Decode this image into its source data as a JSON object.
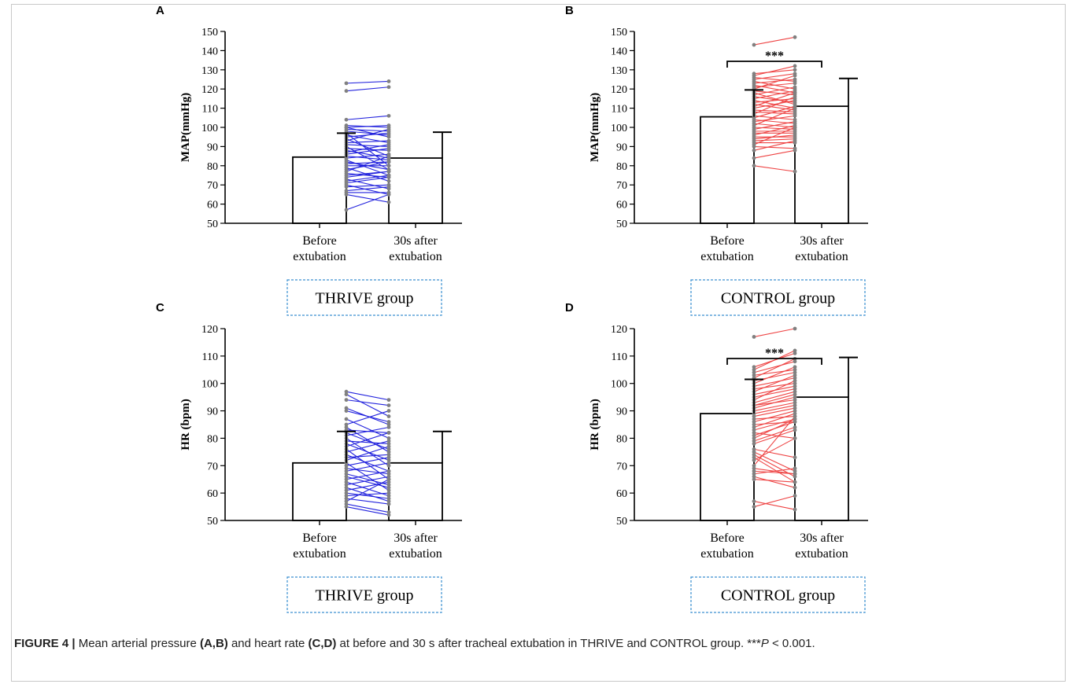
{
  "caption": {
    "label": "FIGURE 4 |",
    "t1": " Mean arterial pressure ",
    "r1": "(A,B)",
    "t2": " and heart rate ",
    "r2": "(C,D)",
    "t3": " at before and 30 s after tracheal extubation in THRIVE and CONTROL group. ***",
    "p": "P",
    "t4": " < 0.001."
  },
  "colors": {
    "thrive": "#2222dd",
    "control": "#ee4444",
    "points": "#808080",
    "group_box_border": "#3a8fd0"
  },
  "chart_data": [
    {
      "panel": "A",
      "type": "bar",
      "group": "THRIVE group",
      "ylabel": "MAP(mmHg)",
      "ylim": [
        50,
        150
      ],
      "yticks": [
        50,
        60,
        70,
        80,
        90,
        100,
        110,
        120,
        130,
        140,
        150
      ],
      "categories": [
        "Before\nextubation",
        "30s after\nextubation"
      ],
      "means": [
        84.5,
        84
      ],
      "sd_upper": [
        97,
        97.5
      ],
      "significance": "",
      "pairs": [
        [
          123,
          124
        ],
        [
          119,
          121
        ],
        [
          104,
          106
        ],
        [
          101,
          100
        ],
        [
          100,
          101
        ],
        [
          100,
          95
        ],
        [
          99,
          98
        ],
        [
          98,
          96
        ],
        [
          97,
          80
        ],
        [
          96,
          92
        ],
        [
          95,
          97
        ],
        [
          94,
          85
        ],
        [
          93,
          99
        ],
        [
          92,
          93
        ],
        [
          91,
          90
        ],
        [
          90,
          78
        ],
        [
          89,
          88
        ],
        [
          88,
          84
        ],
        [
          87,
          91
        ],
        [
          86,
          89
        ],
        [
          85,
          83
        ],
        [
          84,
          86
        ],
        [
          83,
          75
        ],
        [
          82,
          78
        ],
        [
          81,
          82
        ],
        [
          80,
          80
        ],
        [
          79,
          72
        ],
        [
          78,
          82
        ],
        [
          77,
          85
        ],
        [
          76,
          74
        ],
        [
          75,
          77
        ],
        [
          74,
          77
        ],
        [
          73,
          68
        ],
        [
          72,
          75
        ],
        [
          71,
          74
        ],
        [
          70,
          65
        ],
        [
          69,
          70
        ],
        [
          67,
          69
        ],
        [
          66,
          66
        ],
        [
          65,
          61
        ],
        [
          57,
          65
        ]
      ]
    },
    {
      "panel": "B",
      "type": "bar",
      "group": "CONTROL group",
      "ylabel": "MAP(mmHg)",
      "ylim": [
        50,
        150
      ],
      "yticks": [
        50,
        60,
        70,
        80,
        90,
        100,
        110,
        120,
        130,
        140,
        150
      ],
      "categories": [
        "Before\nextubation",
        "30s after\nextubation"
      ],
      "means": [
        105.5,
        111
      ],
      "sd_upper": [
        119.5,
        125.5
      ],
      "significance": "***",
      "pairs": [
        [
          143,
          147
        ],
        [
          128,
          130
        ],
        [
          127,
          132
        ],
        [
          126,
          124
        ],
        [
          125,
          128
        ],
        [
          124,
          120
        ],
        [
          123,
          125
        ],
        [
          122,
          118
        ],
        [
          121,
          123
        ],
        [
          120,
          127
        ],
        [
          119,
          117
        ],
        [
          118,
          112
        ],
        [
          117,
          121
        ],
        [
          116,
          113
        ],
        [
          115,
          119
        ],
        [
          114,
          110
        ],
        [
          113,
          115
        ],
        [
          112,
          109
        ],
        [
          111,
          118
        ],
        [
          110,
          114
        ],
        [
          109,
          108
        ],
        [
          108,
          107
        ],
        [
          107,
          116
        ],
        [
          106,
          104
        ],
        [
          105,
          111
        ],
        [
          104,
          102
        ],
        [
          103,
          106
        ],
        [
          102,
          100
        ],
        [
          101,
          110
        ],
        [
          100,
          99
        ],
        [
          99,
          103
        ],
        [
          98,
          98
        ],
        [
          97,
          97
        ],
        [
          96,
          101
        ],
        [
          95,
          95
        ],
        [
          94,
          96
        ],
        [
          93,
          94
        ],
        [
          92,
          92
        ],
        [
          91,
          100
        ],
        [
          90,
          89
        ],
        [
          88,
          93
        ],
        [
          84,
          88
        ],
        [
          80,
          77
        ]
      ]
    },
    {
      "panel": "C",
      "type": "bar",
      "group": "THRIVE group",
      "ylabel": "HR (bpm)",
      "ylim": [
        50,
        120
      ],
      "yticks": [
        50,
        60,
        70,
        80,
        90,
        100,
        110,
        120
      ],
      "categories": [
        "Before\nextubation",
        "30s after\nextubation"
      ],
      "means": [
        71,
        71
      ],
      "sd_upper": [
        82.5,
        82.5
      ],
      "significance": "",
      "pairs": [
        [
          97,
          94
        ],
        [
          96,
          88
        ],
        [
          94,
          92
        ],
        [
          91,
          85
        ],
        [
          90,
          86
        ],
        [
          87,
          80
        ],
        [
          85,
          90
        ],
        [
          84,
          75
        ],
        [
          83,
          82
        ],
        [
          82,
          76
        ],
        [
          81,
          84
        ],
        [
          80,
          70
        ],
        [
          79,
          78
        ],
        [
          78,
          72
        ],
        [
          77,
          82
        ],
        [
          76,
          65
        ],
        [
          75,
          79
        ],
        [
          74,
          68
        ],
        [
          73,
          74
        ],
        [
          72,
          77
        ],
        [
          71,
          61
        ],
        [
          70,
          73
        ],
        [
          69,
          67
        ],
        [
          68,
          71
        ],
        [
          67,
          63
        ],
        [
          66,
          62
        ],
        [
          65,
          68
        ],
        [
          64,
          59
        ],
        [
          63,
          66
        ],
        [
          62,
          57
        ],
        [
          61,
          64
        ],
        [
          60,
          58
        ],
        [
          59,
          60
        ],
        [
          58,
          56
        ],
        [
          57,
          65
        ],
        [
          56,
          53
        ],
        [
          55,
          52
        ]
      ]
    },
    {
      "panel": "D",
      "type": "bar",
      "group": "CONTROL group",
      "ylabel": "HR (bpm)",
      "ylim": [
        50,
        120
      ],
      "yticks": [
        50,
        60,
        70,
        80,
        90,
        100,
        110,
        120
      ],
      "categories": [
        "Before\nextubation",
        "30s after\nextubation"
      ],
      "means": [
        89,
        95
      ],
      "sd_upper": [
        101.5,
        109.5
      ],
      "significance": "***",
      "pairs": [
        [
          117,
          120
        ],
        [
          106,
          111
        ],
        [
          105,
          112
        ],
        [
          104,
          108
        ],
        [
          103,
          105
        ],
        [
          102,
          109
        ],
        [
          101,
          104
        ],
        [
          100,
          106
        ],
        [
          99,
          102
        ],
        [
          98,
          100
        ],
        [
          97,
          103
        ],
        [
          96,
          99
        ],
        [
          95,
          98
        ],
        [
          94,
          101
        ],
        [
          93,
          97
        ],
        [
          92,
          96
        ],
        [
          92,
          94
        ],
        [
          91,
          95
        ],
        [
          90,
          93
        ],
        [
          89,
          92
        ],
        [
          88,
          91
        ],
        [
          87,
          88
        ],
        [
          86,
          90
        ],
        [
          85,
          86
        ],
        [
          84,
          89
        ],
        [
          83,
          87
        ],
        [
          82,
          80
        ],
        [
          81,
          86
        ],
        [
          80,
          87
        ],
        [
          79,
          84
        ],
        [
          78,
          83
        ],
        [
          76,
          73
        ],
        [
          75,
          68
        ],
        [
          74,
          66
        ],
        [
          73,
          64
        ],
        [
          72,
          80
        ],
        [
          70,
          88
        ],
        [
          69,
          67
        ],
        [
          68,
          67
        ],
        [
          67,
          69
        ],
        [
          66,
          62
        ],
        [
          65,
          64
        ],
        [
          57,
          54
        ],
        [
          55,
          59
        ]
      ]
    }
  ]
}
